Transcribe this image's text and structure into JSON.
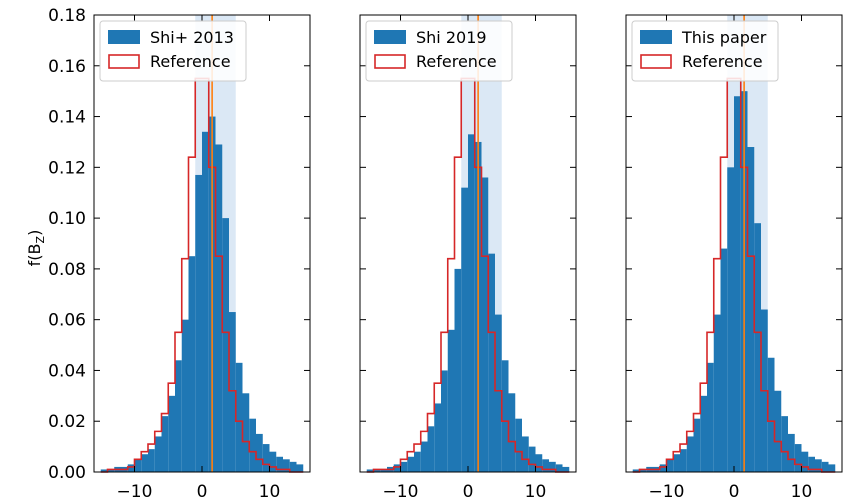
{
  "chart_data": {
    "type": "bar",
    "ylabel_main": "f(B",
    "ylabel_sub": "Z",
    "ylabel_close": ")",
    "ylim": [
      0,
      0.18
    ],
    "xlim": [
      -16,
      16
    ],
    "yticks": [
      0.0,
      0.02,
      0.04,
      0.06,
      0.08,
      0.1,
      0.12,
      0.14,
      0.16,
      0.18
    ],
    "yticklabels": [
      "0.00",
      "0.02",
      "0.04",
      "0.06",
      "0.08",
      "0.10",
      "0.12",
      "0.14",
      "0.16",
      "0.18"
    ],
    "xticks": [
      -10,
      0,
      10
    ],
    "xticklabels": [
      "−10",
      "0",
      "10"
    ],
    "legend_position": "upper-left",
    "bin_edges": [
      -15,
      -14,
      -13,
      -12,
      -11,
      -10,
      -9,
      -8,
      -7,
      -6,
      -5,
      -4,
      -3,
      -2,
      -1,
      0,
      1,
      2,
      3,
      4,
      5,
      6,
      7,
      8,
      9,
      10,
      11,
      12,
      13,
      14,
      15
    ],
    "vertical_line_x": 1.5,
    "shaded_band": [
      -1,
      5
    ],
    "colors": {
      "fill": "#1f77b4",
      "reference": "#d62728",
      "vline": "#ff7f0e",
      "band": "#dbe8f5"
    },
    "panels": [
      {
        "legend_fill_label": "Shi+ 2013",
        "legend_ref_label": "Reference",
        "fill_values": [
          0.001,
          0.001,
          0.002,
          0.002,
          0.003,
          0.005,
          0.007,
          0.009,
          0.014,
          0.022,
          0.03,
          0.044,
          0.06,
          0.085,
          0.117,
          0.134,
          0.14,
          0.129,
          0.1,
          0.063,
          0.043,
          0.031,
          0.021,
          0.015,
          0.011,
          0.008,
          0.006,
          0.005,
          0.004,
          0.003
        ],
        "reference_values": [
          0.0,
          0.001,
          0.001,
          0.001,
          0.002,
          0.005,
          0.008,
          0.011,
          0.016,
          0.023,
          0.035,
          0.055,
          0.084,
          0.124,
          0.155,
          0.155,
          0.12,
          0.085,
          0.055,
          0.032,
          0.02,
          0.012,
          0.008,
          0.005,
          0.003,
          0.002,
          0.001,
          0.001,
          0.0,
          0.0
        ]
      },
      {
        "legend_fill_label": "Shi 2019",
        "legend_ref_label": "Reference",
        "fill_values": [
          0.001,
          0.001,
          0.001,
          0.002,
          0.003,
          0.004,
          0.006,
          0.008,
          0.012,
          0.018,
          0.027,
          0.04,
          0.056,
          0.08,
          0.112,
          0.133,
          0.13,
          0.116,
          0.086,
          0.062,
          0.044,
          0.031,
          0.021,
          0.014,
          0.01,
          0.007,
          0.005,
          0.004,
          0.003,
          0.002
        ],
        "reference_values": [
          0.0,
          0.001,
          0.001,
          0.001,
          0.002,
          0.005,
          0.008,
          0.011,
          0.016,
          0.023,
          0.035,
          0.055,
          0.084,
          0.124,
          0.155,
          0.155,
          0.12,
          0.085,
          0.055,
          0.032,
          0.02,
          0.012,
          0.008,
          0.005,
          0.003,
          0.002,
          0.001,
          0.001,
          0.0,
          0.0
        ]
      },
      {
        "legend_fill_label": "This paper",
        "legend_ref_label": "Reference",
        "fill_values": [
          0.001,
          0.001,
          0.002,
          0.002,
          0.003,
          0.005,
          0.007,
          0.009,
          0.014,
          0.021,
          0.03,
          0.043,
          0.062,
          0.088,
          0.12,
          0.148,
          0.15,
          0.128,
          0.098,
          0.064,
          0.045,
          0.032,
          0.022,
          0.015,
          0.011,
          0.008,
          0.006,
          0.005,
          0.004,
          0.003
        ],
        "reference_values": [
          0.0,
          0.001,
          0.001,
          0.001,
          0.002,
          0.005,
          0.008,
          0.011,
          0.016,
          0.023,
          0.035,
          0.055,
          0.084,
          0.124,
          0.155,
          0.155,
          0.12,
          0.085,
          0.055,
          0.032,
          0.02,
          0.012,
          0.008,
          0.005,
          0.003,
          0.002,
          0.001,
          0.001,
          0.0,
          0.0
        ]
      }
    ]
  }
}
